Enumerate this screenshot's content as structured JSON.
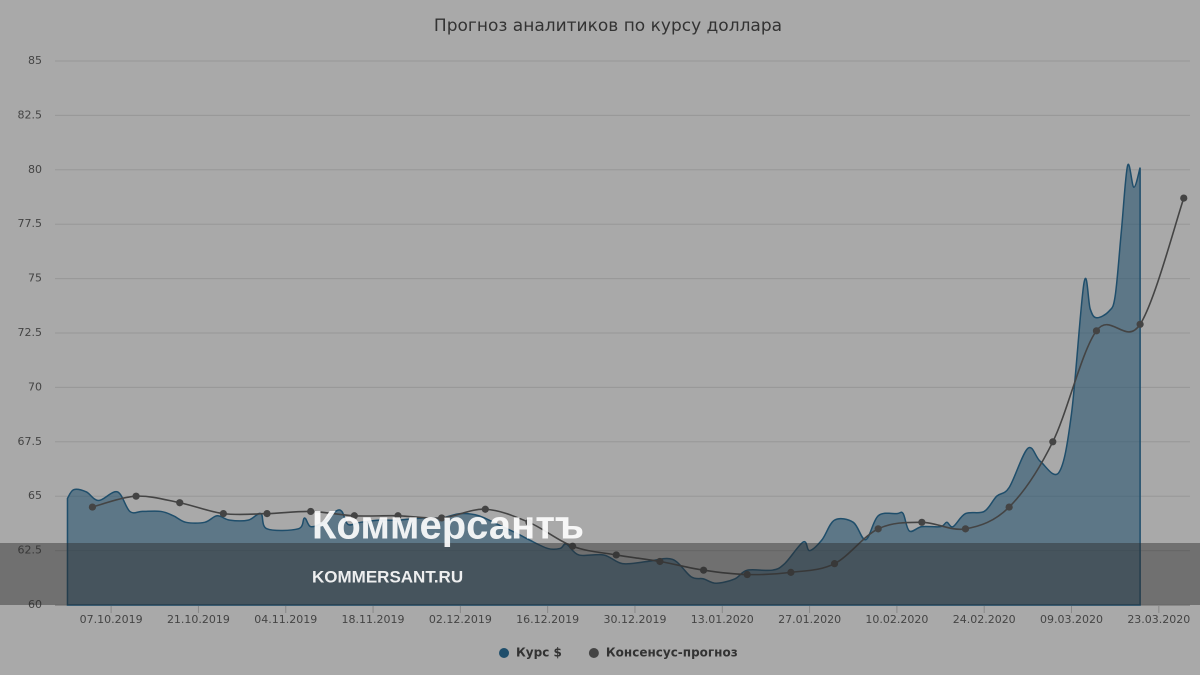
{
  "chart_data": {
    "type": "line",
    "title": "Прогноз аналитиков по курсу доллара",
    "watermark": [
      "Коммерсантъ",
      "KOMMERSANT.RU"
    ],
    "ylim": [
      60,
      85
    ],
    "yticks": [
      60,
      62.5,
      65,
      67.5,
      70,
      72.5,
      75,
      77.5,
      80,
      82.5,
      85
    ],
    "xlim": [
      "28.09.2019",
      "28.03.2020"
    ],
    "xticks": [
      "07.10.2019",
      "21.10.2019",
      "04.11.2019",
      "18.11.2019",
      "02.12.2019",
      "16.12.2019",
      "30.12.2019",
      "13.01.2020",
      "27.01.2020",
      "10.02.2020",
      "24.02.2020",
      "09.03.2020",
      "23.03.2020"
    ],
    "grid": true,
    "series": [
      {
        "name": "Курс $",
        "color": "#1f4e6b",
        "style": "area",
        "x": [
          "30.09.2019",
          "01.10.2019",
          "03.10.2019",
          "05.10.2019",
          "08.10.2019",
          "10.10.2019",
          "12.10.2019",
          "15.10.2019",
          "17.10.2019",
          "19.10.2019",
          "22.10.2019",
          "24.10.2019",
          "26.10.2019",
          "29.10.2019",
          "31.10.2019",
          "01.11.2019",
          "06.11.2019",
          "07.11.2019",
          "08.11.2019",
          "10.11.2019",
          "12.11.2019",
          "13.11.2019",
          "14.11.2019",
          "16.11.2019",
          "19.11.2019",
          "22.11.2019",
          "26.11.2019",
          "29.11.2019",
          "02.12.2019",
          "05.12.2019",
          "08.12.2019",
          "11.12.2019",
          "13.12.2019",
          "16.12.2019",
          "18.12.2019",
          "19.12.2019",
          "21.12.2019",
          "25.12.2019",
          "28.12.2019",
          "01.01.2020",
          "05.01.2020",
          "08.01.2020",
          "10.01.2020",
          "12.01.2020",
          "15.01.2020",
          "17.01.2020",
          "21.01.2020",
          "23.01.2020",
          "26.01.2020",
          "27.01.2020",
          "29.01.2020",
          "31.01.2020",
          "03.02.2020",
          "05.02.2020",
          "07.02.2020",
          "10.02.2020",
          "11.02.2020",
          "12.02.2020",
          "14.02.2020",
          "17.02.2020",
          "18.02.2020",
          "19.02.2020",
          "21.02.2020",
          "24.02.2020",
          "26.02.2020",
          "28.02.2020",
          "02.03.2020",
          "04.03.2020",
          "07.03.2020",
          "09.03.2020",
          "11.03.2020",
          "12.03.2020",
          "13.03.2020",
          "15.03.2020",
          "16.03.2020",
          "17.03.2020",
          "18.03.2020",
          "19.03.2020",
          "20.03.2020"
        ],
        "values": [
          64.9,
          65.3,
          65.2,
          64.8,
          65.2,
          64.3,
          64.3,
          64.3,
          64.1,
          63.8,
          63.8,
          64.1,
          63.9,
          63.9,
          64.2,
          63.5,
          63.5,
          64.0,
          63.6,
          63.8,
          64.3,
          64.3,
          63.7,
          63.8,
          63.9,
          63.9,
          64.0,
          64.0,
          64.2,
          64.1,
          63.7,
          63.3,
          63.0,
          62.6,
          62.6,
          62.8,
          62.3,
          62.3,
          61.9,
          62.0,
          62.1,
          61.3,
          61.2,
          61.0,
          61.2,
          61.6,
          61.6,
          61.9,
          62.9,
          62.5,
          63.0,
          63.9,
          63.8,
          63.0,
          64.1,
          64.2,
          64.2,
          63.4,
          63.6,
          63.6,
          63.8,
          63.6,
          64.2,
          64.3,
          65.0,
          65.4,
          67.2,
          66.6,
          66.1,
          68.8,
          74.8,
          73.6,
          73.2,
          73.5,
          74.2,
          77.2,
          80.2,
          79.2,
          80.1
        ]
      },
      {
        "name": "Консенсус-прогноз",
        "color": "#444444",
        "style": "line",
        "x": [
          "04.10.2019",
          "11.10.2019",
          "18.10.2019",
          "25.10.2019",
          "01.11.2019",
          "08.11.2019",
          "15.11.2019",
          "22.11.2019",
          "29.11.2019",
          "06.12.2019",
          "13.12.2019",
          "20.12.2019",
          "27.12.2019",
          "03.01.2020",
          "10.01.2020",
          "17.01.2020",
          "24.01.2020",
          "31.01.2020",
          "07.02.2020",
          "14.02.2020",
          "21.02.2020",
          "28.02.2020",
          "06.03.2020",
          "13.03.2020",
          "20.03.2020",
          "27.03.2020"
        ],
        "values": [
          64.5,
          65.0,
          64.7,
          64.2,
          64.2,
          64.3,
          64.1,
          64.1,
          64.0,
          64.4,
          63.8,
          62.7,
          62.3,
          62.0,
          61.6,
          61.4,
          61.5,
          61.9,
          63.5,
          63.8,
          63.5,
          64.5,
          67.5,
          72.6,
          72.9,
          78.7
        ]
      }
    ]
  }
}
